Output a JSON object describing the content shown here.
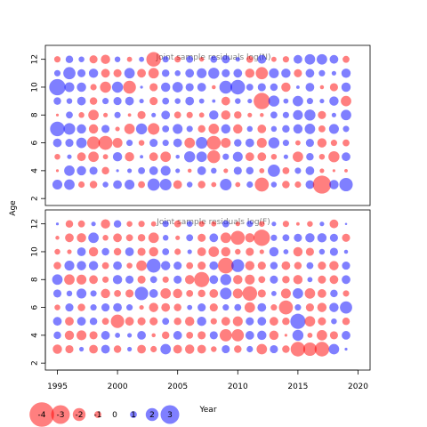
{
  "chart_data": {
    "type": "scatter",
    "style": "bubble",
    "x_axis": {
      "label": "Year",
      "range": [
        1994,
        2021
      ],
      "ticks": [
        1995,
        2000,
        2005,
        2010,
        2015,
        2020
      ]
    },
    "y_axis": {
      "label": "Age",
      "range": [
        1.5,
        13.0
      ],
      "ticks": [
        2,
        4,
        6,
        8,
        10,
        12
      ]
    },
    "years": [
      1995,
      1996,
      1997,
      1998,
      1999,
      2000,
      2001,
      2002,
      2003,
      2004,
      2005,
      2006,
      2007,
      2008,
      2009,
      2010,
      2011,
      2012,
      2013,
      2014,
      2015,
      2016,
      2017,
      2018,
      2019
    ],
    "ages": [
      3,
      4,
      5,
      6,
      7,
      8,
      9,
      10,
      11,
      12
    ],
    "colors": {
      "positive": "#0000ff",
      "negative": "#ff0000"
    },
    "panels": [
      {
        "title": "Joint sample residuals log(N)",
        "residuals": [
          [
            1.5,
            1.6,
            -0.9,
            -1.1,
            0.8,
            1.3,
            1.5,
            -1.0,
            1.9,
            1.8,
            -1.3,
            0.8,
            -1.1,
            -0.7,
            1.8,
            -0.7,
            0.9,
            -2.2,
            0.8,
            -1.1,
            -0.9,
            1.3,
            -2.9,
            1.4,
            2.1
          ],
          [
            -0.3,
            1.6,
            1.4,
            1.2,
            -1.1,
            0.3,
            0.6,
            1.0,
            1.3,
            1.5,
            0.6,
            -0.5,
            1.3,
            0.8,
            -0.6,
            1.2,
            1.1,
            -0.7,
            1.9,
            -1.0,
            0.9,
            1.3,
            -0.6,
            -0.3,
            -0.4
          ],
          [
            -0.8,
            0.6,
            -1.3,
            -1.6,
            -0.7,
            1.4,
            -1.4,
            0.4,
            -1.3,
            -1.6,
            0.5,
            1.7,
            1.6,
            -2.0,
            0.9,
            1.5,
            -1.3,
            -1.3,
            -0.8,
            0.6,
            -1.6,
            1.1,
            -0.8,
            -1.7,
            1.3
          ],
          [
            1.3,
            1.2,
            1.6,
            -2.0,
            -2.2,
            -1.5,
            0.9,
            -0.8,
            1.2,
            0.9,
            1.3,
            -1.6,
            1.8,
            -2.2,
            -1.5,
            1.1,
            1.3,
            -1.5,
            1.7,
            0.9,
            -0.7,
            1.2,
            -1.4,
            -0.9,
            -1.0
          ],
          [
            2.3,
            1.8,
            1.4,
            -1.4,
            1.2,
            -0.6,
            -1.6,
            1.7,
            -1.8,
            1.0,
            1.5,
            0.9,
            -1.1,
            -1.6,
            1.4,
            -1.4,
            0.8,
            -1.3,
            0.8,
            1.1,
            1.4,
            1.6,
            -1.0,
            1.5,
            0.9
          ],
          [
            -0.3,
            1.0,
            -0.8,
            -1.6,
            -0.6,
            0.9,
            -0.4,
            -1.2,
            0.6,
            1.3,
            -1.0,
            -0.9,
            -0.7,
            1.4,
            -1.4,
            -1.1,
            -0.6,
            -0.5,
            1.0,
            0.9,
            1.5,
            1.7,
            -1.2,
            0.6,
            1.6
          ],
          [
            1.1,
            0.8,
            1.3,
            -1.1,
            0.9,
            1.2,
            1.3,
            0.6,
            -1.2,
            1.0,
            0.8,
            1.3,
            0.7,
            0.4,
            -1.3,
            0.8,
            0.6,
            -2.6,
            1.7,
            0.7,
            1.6,
            0.9,
            0.6,
            1.4,
            -1.6
          ],
          [
            2.6,
            1.5,
            1.4,
            -0.9,
            -1.7,
            1.7,
            -2.0,
            0.3,
            -1.2,
            1.4,
            1.6,
            1.2,
            1.3,
            -0.5,
            2.0,
            2.3,
            1.0,
            1.2,
            1.1,
            -1.4,
            0.4,
            1.3,
            -0.5,
            -1.2,
            1.4
          ],
          [
            0.9,
            1.9,
            1.2,
            1.4,
            -1.3,
            -1.2,
            1.6,
            -1.3,
            -1.6,
            1.1,
            0.8,
            1.3,
            1.5,
            1.7,
            1.2,
            1.3,
            -1.4,
            -1.9,
            1.5,
            1.4,
            -1.2,
            1.3,
            0.9,
            0.6,
            1.4
          ],
          [
            -0.9,
            1.1,
            0.8,
            -1.2,
            -1.4,
            0.8,
            -0.7,
            0.7,
            -2.3,
            0.9,
            -0.9,
            1.0,
            -0.6,
            1.0,
            1.2,
            0.6,
            -1.0,
            1.3,
            -0.7,
            -0.9,
            1.3,
            1.6,
            1.6,
            1.3,
            -1.0
          ]
        ]
      },
      {
        "title": "Joint sample residuals log(F)",
        "residuals": [
          [
            -1.4,
            -1.2,
            0.6,
            -1.3,
            1.3,
            -1.1,
            0.6,
            -1.3,
            -0.9,
            1.6,
            -1.3,
            -1.4,
            -1.3,
            -0.8,
            1.2,
            -1.1,
            0.9,
            -1.6,
            1.2,
            -1.1,
            -2.3,
            -2.1,
            -2.3,
            1.6,
            0.3
          ],
          [
            1.1,
            -1.4,
            -1.5,
            -1.2,
            1.3,
            0.7,
            0.6,
            1.3,
            -0.5,
            -1.1,
            1.3,
            -1.0,
            -1.2,
            1.2,
            -1.9,
            -1.9,
            1.3,
            1.4,
            -1.4,
            -0.3,
            1.7,
            -0.7,
            -1.6,
            -1.2,
            1.3
          ],
          [
            1.3,
            -1.3,
            1.3,
            1.1,
            -1.0,
            -2.1,
            -1.3,
            -1.2,
            -1.2,
            1.0,
            -1.1,
            -1.4,
            1.4,
            -0.9,
            -1.3,
            -1.5,
            1.2,
            1.3,
            -1.3,
            -1.1,
            2.4,
            -1.6,
            -1.2,
            0.8,
            -1.1
          ],
          [
            -0.8,
            1.2,
            -1.1,
            0.9,
            1.2,
            1.3,
            0.9,
            -0.6,
            -1.4,
            -1.3,
            -1.1,
            0.7,
            1.2,
            -1.2,
            0.9,
            1.0,
            -1.6,
            1.3,
            -0.9,
            -2.2,
            0.9,
            -1.2,
            -1.4,
            1.4,
            1.9
          ],
          [
            1.2,
            0.8,
            1.5,
            0.9,
            -1.4,
            -1.0,
            -1.2,
            2.1,
            1.3,
            -1.6,
            -1.4,
            -1.0,
            -1.1,
            -1.3,
            1.8,
            -1.5,
            -2.3,
            -1.2,
            0.7,
            -1.5,
            1.6,
            -1.6,
            -1.3,
            1.1,
            -0.9
          ],
          [
            1.6,
            -1.6,
            -1.5,
            -1.3,
            -0.9,
            1.4,
            1.2,
            -1.2,
            1.0,
            -0.9,
            1.2,
            -1.4,
            -2.4,
            1.3,
            1.7,
            -1.4,
            -1.5,
            -1.0,
            1.2,
            -1.1,
            -1.4,
            0.7,
            -1.2,
            -1.3,
            1.3
          ],
          [
            -1.1,
            1.5,
            1.4,
            1.4,
            -1.0,
            1.3,
            -0.8,
            -1.6,
            2.2,
            1.4,
            1.2,
            -1.0,
            -1.2,
            1.3,
            -2.5,
            2.0,
            -1.4,
            -1.2,
            1.1,
            -1.3,
            -1.1,
            1.0,
            -1.2,
            -1.4,
            1.2
          ],
          [
            -0.8,
            -0.6,
            1.3,
            -1.4,
            1.1,
            -1.1,
            1.3,
            -1.2,
            -1.4,
            1.0,
            -0.9,
            0.6,
            -1.3,
            -1.6,
            -1.4,
            -0.8,
            -1.2,
            -0.6,
            1.4,
            0.7,
            -1.4,
            -1.2,
            0.8,
            1.2,
            0.5
          ],
          [
            -0.5,
            -1.3,
            -1.4,
            1.6,
            -0.8,
            -1.3,
            -1.0,
            -1.1,
            -1.6,
            0.8,
            -0.6,
            1.0,
            -1.2,
            1.3,
            -1.6,
            -2.2,
            -1.4,
            -2.6,
            0.9,
            1.0,
            1.2,
            1.4,
            1.4,
            1.2,
            -1.2
          ],
          [
            0.3,
            -1.1,
            -1.0,
            0.6,
            -1.4,
            1.1,
            -0.8,
            -0.9,
            -0.7,
            0.9,
            -1.0,
            0.8,
            -0.8,
            -0.7,
            1.0,
            -0.6,
            0.9,
            -0.8,
            0.6,
            -0.9,
            -0.4,
            -0.8,
            0.6,
            -1.3,
            0.2
          ]
        ]
      }
    ],
    "legend": {
      "position": "bottom-left",
      "values": [
        -4,
        -3,
        -2,
        -1,
        0,
        1,
        2,
        3
      ]
    }
  }
}
